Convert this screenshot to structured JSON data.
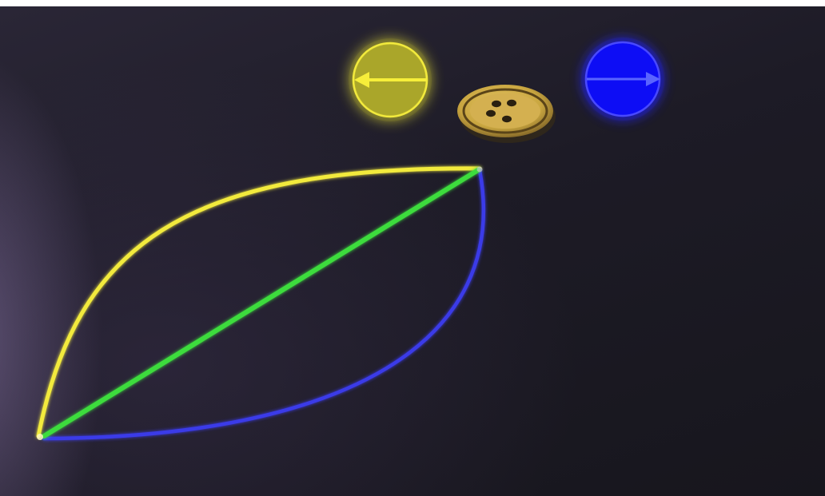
{
  "palette": {
    "left_orb": "#e8e23a",
    "right_orb": "#1a1aff",
    "connector": "#3ddc3d",
    "upper_curve": "#f2ea3c",
    "lower_curve": "#3a3ae8",
    "button": "#c9a640",
    "button_dark": "#6b5420"
  },
  "icons": {
    "left_orb": "arrow-left-icon",
    "right_orb": "arrow-right-icon",
    "button": "sewing-button-icon"
  }
}
